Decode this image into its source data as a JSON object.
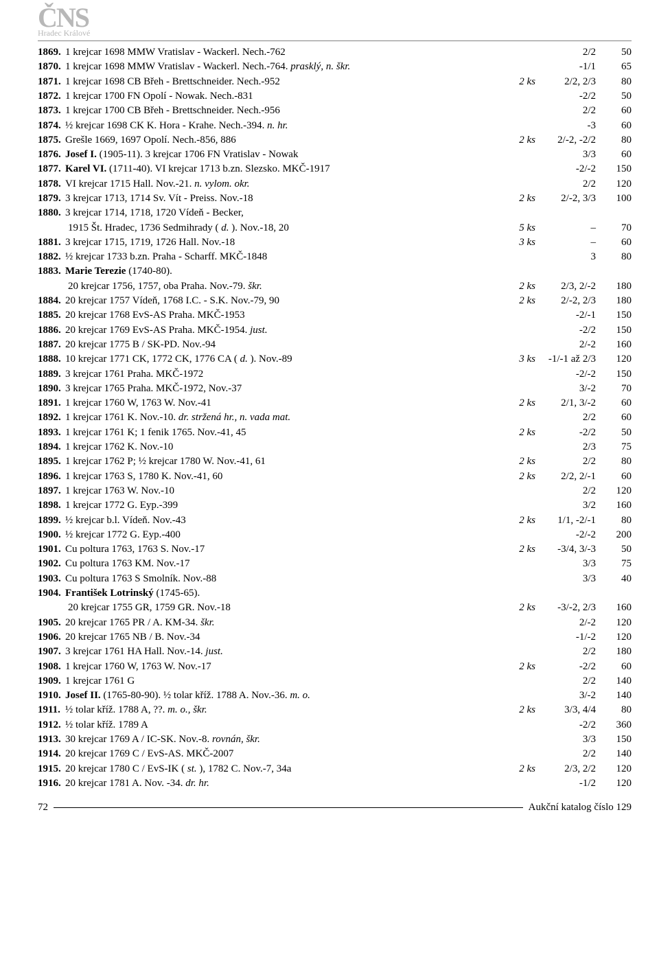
{
  "logo": "ČNS",
  "logo_sub": "Hradec Králové",
  "footer_page": "72",
  "footer_text": "Aukční katalog číslo 129",
  "rows": [
    {
      "n": "1869.",
      "d": "1 krejcar 1698 MMW Vratislav - Wackerl. Nech.-762",
      "ks": "",
      "g": "2/2",
      "p": "50"
    },
    {
      "n": "1870.",
      "d": "1 krejcar 1698 MMW Vratislav - Wackerl. Nech.-764. ",
      "i": "prasklý, n. škr.",
      "ks": "",
      "g": "-1/1",
      "p": "65"
    },
    {
      "n": "1871.",
      "d": "1 krejcar 1698 CB Břeh - Brettschneider. Nech.-952",
      "ks": "2 ks",
      "g": "2/2, 2/3",
      "p": "80"
    },
    {
      "n": "1872.",
      "d": "1 krejcar 1700 FN Opolí - Nowak. Nech.-831",
      "ks": "",
      "g": "-2/2",
      "p": "50"
    },
    {
      "n": "1873.",
      "d": "1 krejcar 1700 CB Břeh - Brettschneider. Nech.-956",
      "ks": "",
      "g": "2/2",
      "p": "60"
    },
    {
      "n": "1874.",
      "d": "½ krejcar 1698 CK K. Hora - Krahe. Nech.-394. ",
      "i": "n. hr.",
      "ks": "",
      "g": "-3",
      "p": "60"
    },
    {
      "n": "1875.",
      "d": "Grešle 1669, 1697 Opolí. Nech.-856, 886",
      "ks": "2 ks",
      "g": "2/-2, -2/2",
      "p": "80"
    },
    {
      "n": "1876.",
      "b": "Josef I. ",
      "d": "(1905-11). 3 krejcar 1706 FN Vratislav - Nowak",
      "ks": "",
      "g": "3/3",
      "p": "60"
    },
    {
      "n": "1877.",
      "b": "Karel VI. ",
      "d": "(1711-40). VI krejcar 1713 b.zn. Slezsko. MKČ-1917",
      "ks": "",
      "g": "-2/-2",
      "p": "150"
    },
    {
      "n": "1878.",
      "d": "VI krejcar 1715 Hall. Nov.-21. ",
      "i": "n. vylom. okr.",
      "ks": "",
      "g": "2/2",
      "p": "120"
    },
    {
      "n": "1879.",
      "d": "3 krejcar 1713, 1714 Sv. Vít - Preiss. Nov.-18",
      "ks": "2 ks",
      "g": "2/-2, 3/3",
      "p": "100"
    },
    {
      "n": "1880.",
      "d": "3 krejcar 1714, 1718, 1720 Vídeň - Becker,",
      "ks": "",
      "g": "",
      "p": ""
    },
    {
      "cont": true,
      "d": "1915 Št. Hradec, 1736 Sedmihrady ( ",
      "i": "d. ",
      "d2": "). Nov.-18, 20",
      "ks": "5 ks",
      "g": "–",
      "p": "70"
    },
    {
      "n": "1881.",
      "d": "3 krejcar 1715, 1719, 1726 Hall. Nov.-18",
      "ks": "3 ks",
      "g": "–",
      "p": "60"
    },
    {
      "n": "1882.",
      "d": "½ krejcar 1733 b.zn. Praha - Scharff. MKČ-1848",
      "ks": "",
      "g": "3",
      "p": "80"
    },
    {
      "n": "1883.",
      "b": "Marie Terezie ",
      "d": "(1740-80).",
      "ks": "",
      "g": "",
      "p": ""
    },
    {
      "cont": true,
      "d": "20 krejcar 1756, 1757, oba Praha. Nov.-79. ",
      "i": "škr.",
      "ks": "2 ks",
      "g": "2/3, 2/-2",
      "p": "180"
    },
    {
      "n": "1884.",
      "d": "20 krejcar 1757 Vídeň, 1768 I.C. - S.K. Nov.-79, 90",
      "ks": "2 ks",
      "g": "2/-2, 2/3",
      "p": "180"
    },
    {
      "n": "1885.",
      "d": "20 krejcar 1768 EvS-AS Praha. MKČ-1953",
      "ks": "",
      "g": "-2/-1",
      "p": "150"
    },
    {
      "n": "1886.",
      "d": "20 krejcar 1769 EvS-AS Praha. MKČ-1954. ",
      "i": "just.",
      "ks": "",
      "g": "-2/2",
      "p": "150"
    },
    {
      "n": "1887.",
      "d": "20 krejcar 1775 B / SK-PD. Nov.-94",
      "ks": "",
      "g": "2/-2",
      "p": "160"
    },
    {
      "n": "1888.",
      "d": "10 krejcar 1771 CK, 1772 CK, 1776 CA ( ",
      "i": "d. ",
      "d2": "). Nov.-89",
      "ks": "3 ks",
      "g": "-1/-1 až 2/3",
      "p": "120"
    },
    {
      "n": "1889.",
      "d": "3 krejcar 1761 Praha. MKČ-1972",
      "ks": "",
      "g": "-2/-2",
      "p": "150"
    },
    {
      "n": "1890.",
      "d": "3 krejcar 1765 Praha. MKČ-1972, Nov.-37",
      "ks": "",
      "g": "3/-2",
      "p": "70"
    },
    {
      "n": "1891.",
      "d": "1 krejcar 1760 W, 1763 W. Nov.-41",
      "ks": "2 ks",
      "g": "2/1, 3/-2",
      "p": "60"
    },
    {
      "n": "1892.",
      "d": "1 krejcar 1761 K. Nov.-10. ",
      "i": "dr. stržená hr., n. vada mat.",
      "ks": "",
      "g": "2/2",
      "p": "60"
    },
    {
      "n": "1893.",
      "d": "1 krejcar 1761 K; 1 fenik 1765. Nov.-41, 45",
      "ks": "2 ks",
      "g": "-2/2",
      "p": "50"
    },
    {
      "n": "1894.",
      "d": "1 krejcar 1762 K. Nov.-10",
      "ks": "",
      "g": "2/3",
      "p": "75"
    },
    {
      "n": "1895.",
      "d": "1 krejcar 1762 P; ½ krejcar 1780 W. Nov.-41, 61",
      "ks": "2 ks",
      "g": "2/2",
      "p": "80"
    },
    {
      "n": "1896.",
      "d": "1 krejcar 1763 S, 1780 K. Nov.-41, 60",
      "ks": "2 ks",
      "g": "2/2, 2/-1",
      "p": "60"
    },
    {
      "n": "1897.",
      "d": "1 krejcar 1763 W. Nov.-10",
      "ks": "",
      "g": "2/2",
      "p": "120"
    },
    {
      "n": "1898.",
      "d": "1 krejcar 1772 G. Eyp.-399",
      "ks": "",
      "g": "3/2",
      "p": "160"
    },
    {
      "n": "1899.",
      "d": "½ krejcar b.l. Vídeň. Nov.-43",
      "ks": "2 ks",
      "g": "1/1, -2/-1",
      "p": "80"
    },
    {
      "n": "1900.",
      "d": "½ krejcar 1772 G. Eyp.-400",
      "ks": "",
      "g": "-2/-2",
      "p": "200"
    },
    {
      "n": "1901.",
      "d": "Cu poltura 1763, 1763 S. Nov.-17",
      "ks": "2 ks",
      "g": "-3/4, 3/-3",
      "p": "50"
    },
    {
      "n": "1902.",
      "d": "Cu poltura 1763 KM. Nov.-17",
      "ks": "",
      "g": "3/3",
      "p": "75"
    },
    {
      "n": "1903.",
      "d": "Cu poltura 1763 S Smolník. Nov.-88",
      "ks": "",
      "g": "3/3",
      "p": "40"
    },
    {
      "n": "1904.",
      "b": "František Lotrinský ",
      "d": "(1745-65).",
      "ks": "",
      "g": "",
      "p": ""
    },
    {
      "cont": true,
      "d": "20 krejcar 1755 GR, 1759 GR. Nov.-18",
      "ks": "2 ks",
      "g": "-3/-2, 2/3",
      "p": "160"
    },
    {
      "n": "1905.",
      "d": "20 krejcar 1765 PR / A. KM-34. ",
      "i": "škr.",
      "ks": "",
      "g": "2/-2",
      "p": "120"
    },
    {
      "n": "1906.",
      "d": "20 krejcar 1765 NB / B. Nov.-34",
      "ks": "",
      "g": "-1/-2",
      "p": "120"
    },
    {
      "n": "1907.",
      "d": "3 krejcar 1761 HA Hall. Nov.-14. ",
      "i": "just.",
      "ks": "",
      "g": "2/2",
      "p": "180"
    },
    {
      "n": "1908.",
      "d": "1 krejcar 1760 W, 1763 W. Nov.-17",
      "ks": "2 ks",
      "g": "-2/2",
      "p": "60"
    },
    {
      "n": "1909.",
      "d": "1 krejcar 1761 G",
      "ks": "",
      "g": "2/2",
      "p": "140"
    },
    {
      "n": "1910.",
      "b": "Josef II. ",
      "d": "(1765-80-90). ½ tolar kříž. 1788 A. Nov.-36. ",
      "i": "m. o.",
      "ks": "",
      "g": "3/-2",
      "p": "140"
    },
    {
      "n": "1911.",
      "d": "½ tolar kříž. 1788 A, ??. ",
      "i": "m. o., škr.",
      "ks": "2 ks",
      "g": "3/3, 4/4",
      "p": "80"
    },
    {
      "n": "1912.",
      "d": "½ tolar kříž. 1789 A",
      "ks": "",
      "g": "-2/2",
      "p": "360"
    },
    {
      "n": "1913.",
      "d": "30 krejcar 1769 A / IC-SK. Nov.-8. ",
      "i": "rovnán, škr.",
      "ks": "",
      "g": "3/3",
      "p": "150"
    },
    {
      "n": "1914.",
      "d": "20 krejcar 1769 C / EvS-AS. MKČ-2007",
      "ks": "",
      "g": "2/2",
      "p": "140"
    },
    {
      "n": "1915.",
      "d": "20 krejcar 1780 C / EvS-IK ( ",
      "i": "st. ",
      "d2": "), 1782 C. Nov.-7, 34a",
      "ks": "2 ks",
      "g": "2/3, 2/2",
      "p": "120"
    },
    {
      "n": "1916.",
      "d": "20 krejcar 1781 A. Nov. -34. ",
      "i": "dr. hr.",
      "ks": "",
      "g": "-1/2",
      "p": "120"
    }
  ]
}
